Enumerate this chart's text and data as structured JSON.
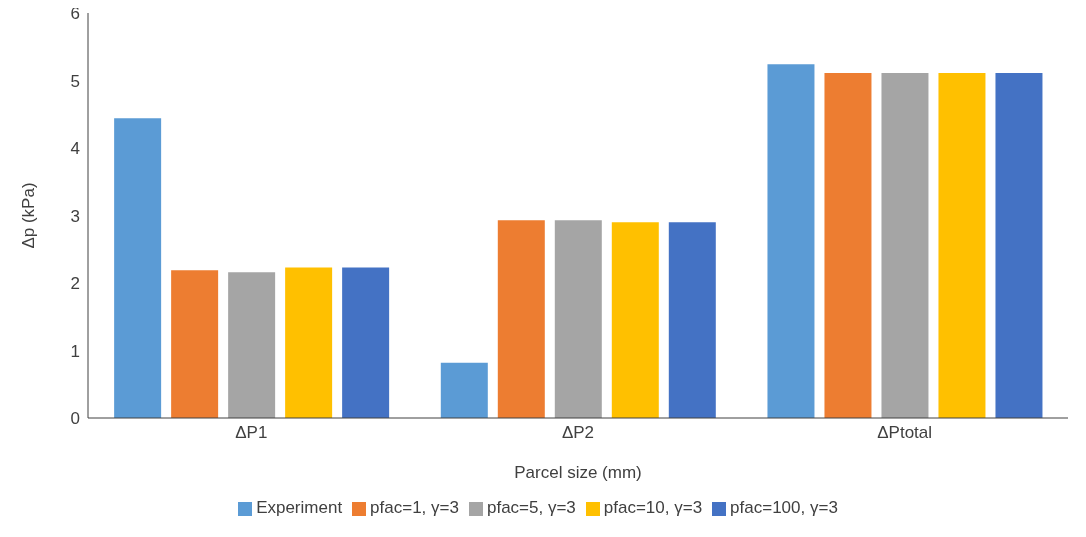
{
  "chart_data": {
    "type": "bar",
    "xlabel": "Parcel size (mm)",
    "ylabel": "Δp (kPa)",
    "categories": [
      "ΔP1",
      "ΔP2",
      "ΔPtotal"
    ],
    "series": [
      {
        "name": "Experiment",
        "color": "#5b9bd5",
        "values": [
          4.44,
          0.82,
          5.24
        ]
      },
      {
        "name": "pfac=1, γ=3",
        "color": "#ed7d31",
        "values": [
          2.19,
          2.93,
          5.11
        ]
      },
      {
        "name": "pfac=5, γ=3",
        "color": "#a5a5a5",
        "values": [
          2.16,
          2.93,
          5.11
        ]
      },
      {
        "name": "pfac=10, γ=3",
        "color": "#ffc000",
        "values": [
          2.23,
          2.9,
          5.11
        ]
      },
      {
        "name": "pfac=100, γ=3",
        "color": "#4472c4",
        "values": [
          2.23,
          2.9,
          5.11
        ]
      }
    ],
    "ylim": [
      0,
      6
    ],
    "yticks": [
      0,
      1,
      2,
      3,
      4,
      5,
      6
    ],
    "grid": false,
    "legend": "bottom"
  }
}
